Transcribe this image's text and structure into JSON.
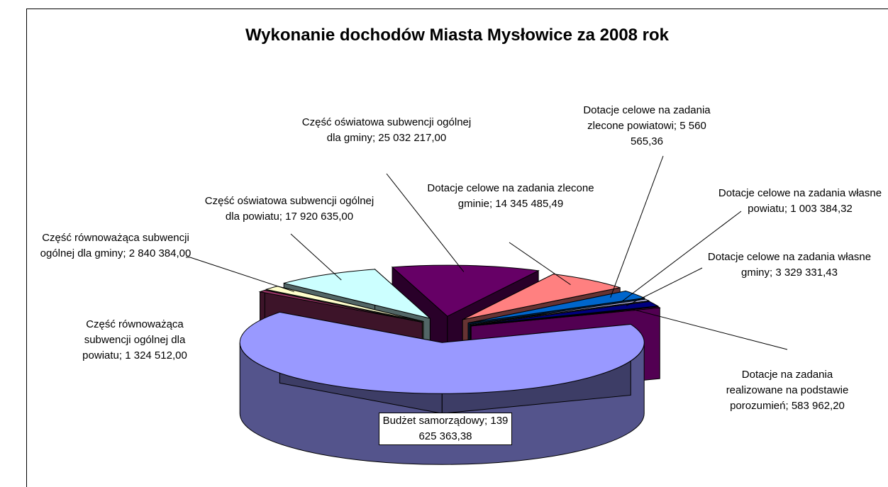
{
  "chart_data": {
    "type": "pie",
    "title": "Wykonanie dochodów Miasta Mysłowice za 2008 rok",
    "separator": ";",
    "categories": [
      "Budżet samorządowy",
      "Część równoważąca subwencji ogólnej dla powiatu",
      "Część równoważąca subwencji ogólnej dla gminy",
      "Część oświatowa subwencji ogólnej dla powiatu",
      "Część oświatowa subwencji ogólnej dla gminy",
      "Dotacje celowe na zadania zlecone gminie",
      "Dotacje celowe na zadania zlecone powiatowi",
      "Dotacje celowe na zadania własne powiatu",
      "Dotacje celowe na zadania własne gminy",
      "Dotacje na zadania realizowane na podstawie porozumień"
    ],
    "values": [
      139625363.38,
      1324512.0,
      2840384.0,
      17920635.0,
      25032217.0,
      14345485.49,
      5560565.36,
      1003384.32,
      3329331.43,
      583962.2
    ],
    "value_labels": [
      "139 625 363,38",
      "1 324 512,00",
      "2 840 384,00",
      "17 920 635,00",
      "25 032 217,00",
      "14 345 485,49",
      "5 560 565,36",
      "1 003 384,32",
      "3 329 331,43",
      "583 962,20"
    ],
    "colors": [
      "#9999ff",
      "#993366",
      "#ffffcc",
      "#ccffff",
      "#660066",
      "#ff8080",
      "#0066cc",
      "#ccccff",
      "#000080",
      "#cc00cc"
    ]
  }
}
